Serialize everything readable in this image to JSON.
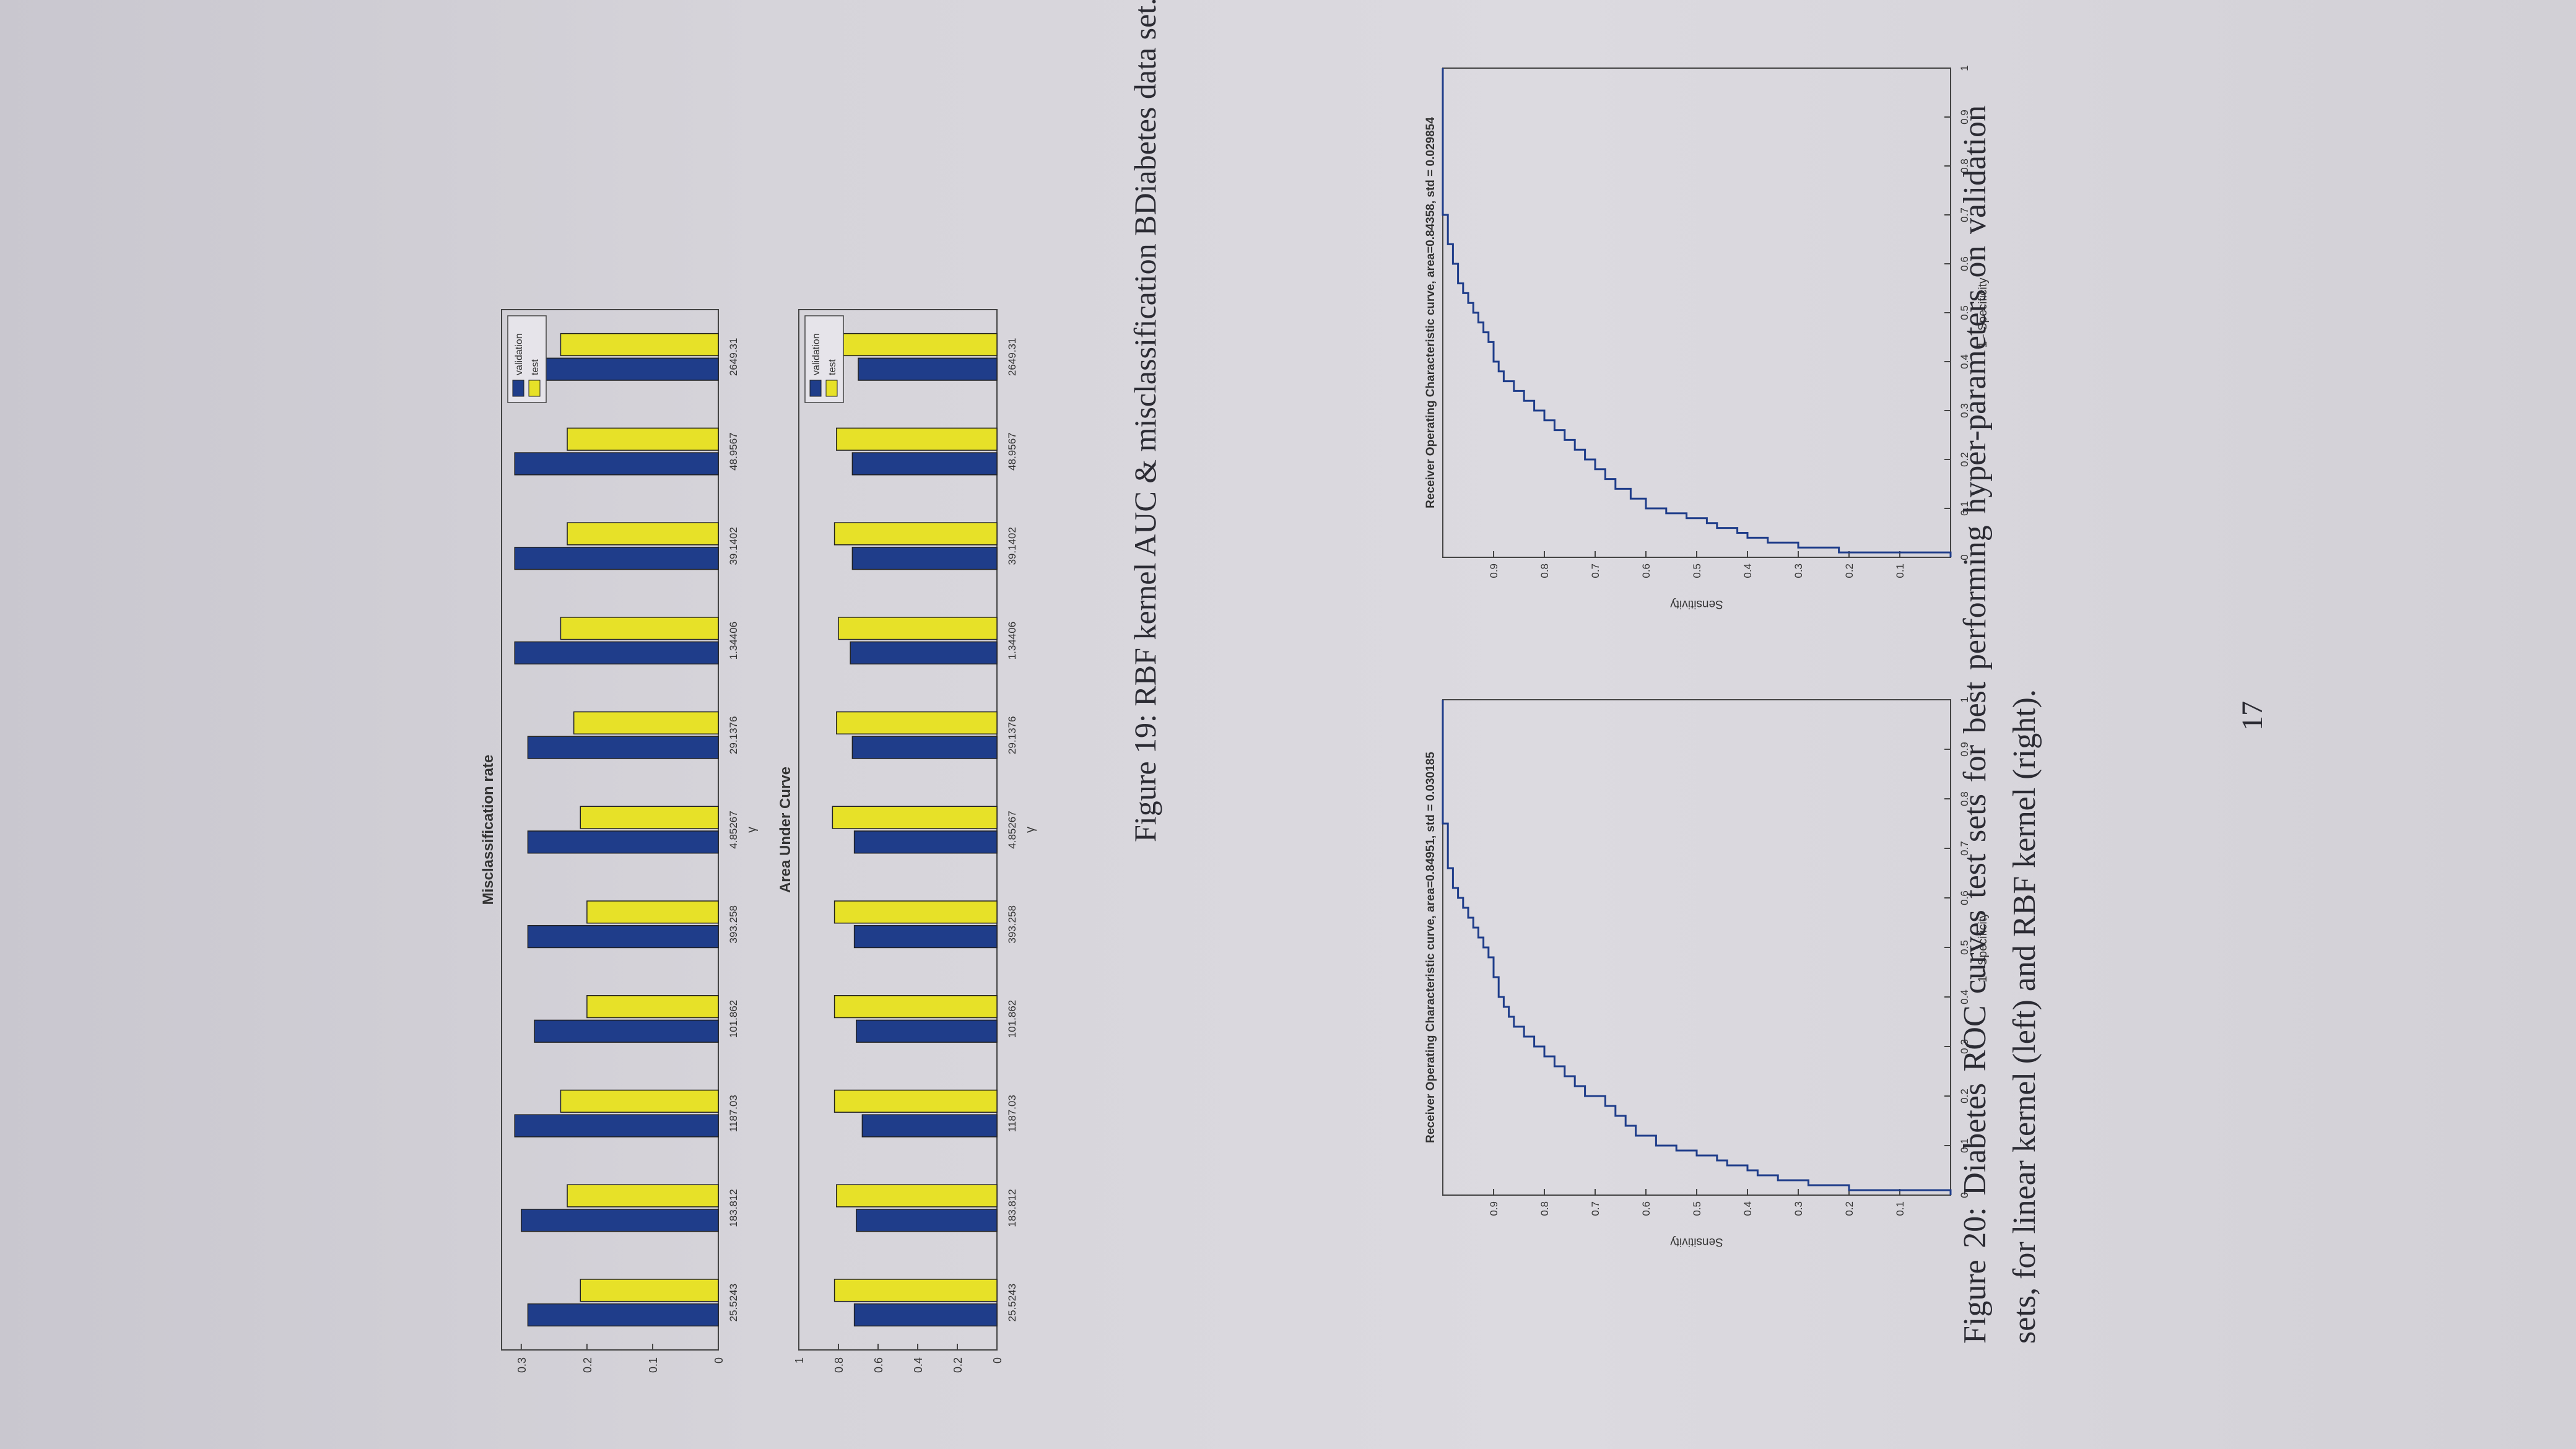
{
  "colors": {
    "validation": "#1f3d8a",
    "test": "#e7e128",
    "roc_line": "#1f3d8a",
    "axis": "#444444",
    "paper": "#dddbe1"
  },
  "figure19": {
    "caption": "Figure 19: RBF kernel AUC & misclassification BDiabetes data set."
  },
  "figure20": {
    "caption": "Figure 20: Diabetes ROC curves test sets for best performing hyper-parameters on validation sets, for linear kernel (left) and RBF kernel (right)."
  },
  "page_number": "17",
  "chart_data": [
    {
      "type": "bar",
      "title": "Misclassification rate",
      "xlabel": "γ",
      "ylabel": "",
      "categories": [
        "25.5243",
        "183.812",
        "1187.03",
        "101.862",
        "393.258",
        "4.85267",
        "29.1376",
        "1.34406",
        "39.1402",
        "48.9567",
        "2649.31"
      ],
      "series": [
        {
          "name": "validation",
          "values": [
            0.29,
            0.3,
            0.31,
            0.28,
            0.29,
            0.29,
            0.29,
            0.31,
            0.31,
            0.31,
            0.27
          ]
        },
        {
          "name": "test",
          "values": [
            0.21,
            0.23,
            0.24,
            0.2,
            0.2,
            0.21,
            0.22,
            0.24,
            0.23,
            0.23,
            0.24
          ]
        }
      ],
      "ylim": [
        0,
        0.33
      ],
      "yticks": [
        0,
        0.1,
        0.2,
        0.3
      ],
      "legend": "top-right"
    },
    {
      "type": "bar",
      "title": "Area Under Curve",
      "xlabel": "γ",
      "ylabel": "",
      "categories": [
        "25.5243",
        "183.812",
        "1187.03",
        "101.862",
        "393.258",
        "4.85267",
        "29.1376",
        "1.34406",
        "39.1402",
        "48.9567",
        "2649.31"
      ],
      "series": [
        {
          "name": "validation",
          "values": [
            0.72,
            0.71,
            0.68,
            0.71,
            0.72,
            0.72,
            0.73,
            0.74,
            0.73,
            0.73,
            0.7
          ]
        },
        {
          "name": "test",
          "values": [
            0.82,
            0.81,
            0.82,
            0.82,
            0.82,
            0.83,
            0.81,
            0.8,
            0.82,
            0.81,
            0.78
          ]
        }
      ],
      "ylim": [
        0,
        1
      ],
      "yticks": [
        0,
        0.2,
        0.4,
        0.6,
        0.8,
        1
      ],
      "legend": "top-right"
    },
    {
      "type": "line",
      "title": "Receiver Operating Characteristic curve, area=0.84951, std = 0.030185",
      "xlabel": "1 - Specificity",
      "ylabel": "Sensitivity",
      "xlim": [
        0,
        1
      ],
      "ylim": [
        0,
        1
      ],
      "xticks": [
        0,
        0.1,
        0.2,
        0.3,
        0.4,
        0.5,
        0.6,
        0.7,
        0.8,
        0.9,
        1
      ],
      "yticks": [
        0.1,
        0.2,
        0.3,
        0.4,
        0.5,
        0.6,
        0.7,
        0.8,
        0.9
      ],
      "x": [
        0,
        0.01,
        0.02,
        0.03,
        0.04,
        0.05,
        0.06,
        0.07,
        0.08,
        0.09,
        0.1,
        0.12,
        0.14,
        0.16,
        0.18,
        0.2,
        0.22,
        0.24,
        0.26,
        0.28,
        0.3,
        0.32,
        0.34,
        0.36,
        0.38,
        0.4,
        0.42,
        0.44,
        0.46,
        0.48,
        0.5,
        0.52,
        0.54,
        0.56,
        0.58,
        0.6,
        0.62,
        0.64,
        0.66,
        0.7,
        0.75,
        0.8,
        0.9,
        1
      ],
      "y": [
        0,
        0.2,
        0.28,
        0.34,
        0.38,
        0.4,
        0.44,
        0.46,
        0.5,
        0.54,
        0.58,
        0.62,
        0.64,
        0.66,
        0.68,
        0.72,
        0.74,
        0.76,
        0.78,
        0.8,
        0.82,
        0.84,
        0.86,
        0.87,
        0.88,
        0.89,
        0.89,
        0.9,
        0.9,
        0.91,
        0.92,
        0.93,
        0.94,
        0.95,
        0.96,
        0.97,
        0.98,
        0.98,
        0.99,
        0.99,
        1,
        1,
        1,
        1
      ]
    },
    {
      "type": "line",
      "title": "Receiver Operating Characteristic curve, area=0.84358, std = 0.029854",
      "xlabel": "1 - Specificity",
      "ylabel": "Sensitivity",
      "xlim": [
        0,
        1
      ],
      "ylim": [
        0,
        1
      ],
      "xticks": [
        0,
        0.1,
        0.2,
        0.3,
        0.4,
        0.5,
        0.6,
        0.7,
        0.8,
        0.9,
        1
      ],
      "yticks": [
        0.1,
        0.2,
        0.3,
        0.4,
        0.5,
        0.6,
        0.7,
        0.8,
        0.9
      ],
      "x": [
        0,
        0.01,
        0.02,
        0.03,
        0.04,
        0.05,
        0.06,
        0.07,
        0.08,
        0.09,
        0.1,
        0.12,
        0.14,
        0.16,
        0.18,
        0.2,
        0.22,
        0.24,
        0.26,
        0.28,
        0.3,
        0.32,
        0.34,
        0.36,
        0.38,
        0.4,
        0.42,
        0.44,
        0.46,
        0.48,
        0.5,
        0.52,
        0.54,
        0.56,
        0.58,
        0.6,
        0.62,
        0.64,
        0.66,
        0.7,
        0.75,
        0.8,
        0.9,
        1
      ],
      "y": [
        0,
        0.22,
        0.3,
        0.36,
        0.4,
        0.42,
        0.46,
        0.48,
        0.52,
        0.56,
        0.6,
        0.63,
        0.66,
        0.68,
        0.7,
        0.72,
        0.74,
        0.76,
        0.78,
        0.8,
        0.82,
        0.84,
        0.86,
        0.88,
        0.89,
        0.9,
        0.9,
        0.91,
        0.92,
        0.93,
        0.94,
        0.95,
        0.96,
        0.97,
        0.97,
        0.98,
        0.98,
        0.99,
        0.99,
        1,
        1,
        1,
        1,
        1
      ]
    }
  ]
}
